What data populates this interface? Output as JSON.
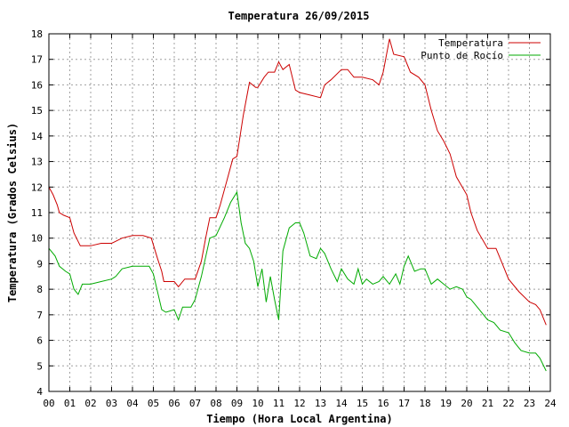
{
  "chart_data": {
    "type": "line",
    "title": "Temperatura 26/09/2015",
    "xlabel": "Tiempo (Hora Local Argentina)",
    "ylabel": "Temperatura (Grados Celsius)",
    "xlim": [
      0,
      24
    ],
    "ylim": [
      4,
      18
    ],
    "x_ticks": [
      "00",
      "01",
      "02",
      "03",
      "04",
      "05",
      "06",
      "07",
      "08",
      "09",
      "10",
      "11",
      "12",
      "13",
      "14",
      "15",
      "16",
      "17",
      "18",
      "19",
      "20",
      "21",
      "22",
      "23",
      "24"
    ],
    "y_ticks": [
      "4",
      "5",
      "6",
      "7",
      "8",
      "9",
      "10",
      "11",
      "12",
      "13",
      "14",
      "15",
      "16",
      "17",
      "18"
    ],
    "grid": true,
    "legend_position": "top-right",
    "series": [
      {
        "name": "Temperatura",
        "color": "#cc0000",
        "x": [
          0,
          0.2,
          0.4,
          0.5,
          0.7,
          1.0,
          1.2,
          1.5,
          2.0,
          2.5,
          3.0,
          3.5,
          4.0,
          4.5,
          4.9,
          5.2,
          5.4,
          5.5,
          6.0,
          6.2,
          6.5,
          7.0,
          7.3,
          7.5,
          7.7,
          8.0,
          8.2,
          8.5,
          8.8,
          9.0,
          9.3,
          9.6,
          9.9,
          10.0,
          10.3,
          10.5,
          10.8,
          11.0,
          11.2,
          11.5,
          11.8,
          12.0,
          12.5,
          13.0,
          13.2,
          13.5,
          14.0,
          14.3,
          14.6,
          15.0,
          15.5,
          15.8,
          16.0,
          16.3,
          16.5,
          17.0,
          17.3,
          17.7,
          18.0,
          18.3,
          18.6,
          18.9,
          19.2,
          19.5,
          20.0,
          20.2,
          20.5,
          21.0,
          21.4,
          21.7,
          22.0,
          22.5,
          23.0,
          23.3,
          23.5,
          23.8
        ],
        "values": [
          12.0,
          11.7,
          11.3,
          11.0,
          10.9,
          10.8,
          10.2,
          9.7,
          9.7,
          9.8,
          9.8,
          10.0,
          10.1,
          10.1,
          10.0,
          9.2,
          8.7,
          8.3,
          8.3,
          8.1,
          8.4,
          8.4,
          9.1,
          10.0,
          10.8,
          10.8,
          11.3,
          12.2,
          13.1,
          13.2,
          14.8,
          16.1,
          15.9,
          15.9,
          16.3,
          16.5,
          16.5,
          16.9,
          16.6,
          16.8,
          15.8,
          15.7,
          15.6,
          15.5,
          16.0,
          16.2,
          16.6,
          16.6,
          16.3,
          16.3,
          16.2,
          16.0,
          16.5,
          17.8,
          17.2,
          17.1,
          16.5,
          16.3,
          16.0,
          15.0,
          14.2,
          13.8,
          13.3,
          12.4,
          11.7,
          11.0,
          10.3,
          9.6,
          9.6,
          9.0,
          8.4,
          7.9,
          7.5,
          7.4,
          7.2,
          6.6
        ]
      },
      {
        "name": "Punto de Rocío",
        "color": "#00aa00",
        "x": [
          0,
          0.3,
          0.5,
          0.8,
          1.0,
          1.2,
          1.4,
          1.6,
          2.0,
          2.5,
          3.0,
          3.2,
          3.5,
          4.0,
          4.5,
          4.8,
          5.0,
          5.2,
          5.4,
          5.6,
          6.0,
          6.2,
          6.4,
          6.8,
          7.0,
          7.3,
          7.7,
          8.0,
          8.4,
          8.7,
          9.0,
          9.2,
          9.4,
          9.6,
          9.8,
          10.0,
          10.2,
          10.4,
          10.6,
          10.8,
          11.0,
          11.2,
          11.5,
          11.8,
          12.0,
          12.2,
          12.5,
          12.8,
          13.0,
          13.2,
          13.5,
          13.8,
          14.0,
          14.3,
          14.6,
          14.8,
          15.0,
          15.2,
          15.5,
          15.8,
          16.0,
          16.3,
          16.6,
          16.8,
          17.0,
          17.2,
          17.5,
          17.8,
          18.0,
          18.3,
          18.6,
          18.9,
          19.2,
          19.5,
          19.8,
          20.0,
          20.2,
          20.5,
          21.0,
          21.3,
          21.6,
          22.0,
          22.3,
          22.6,
          23.0,
          23.3,
          23.5,
          23.8
        ],
        "values": [
          9.6,
          9.3,
          8.9,
          8.7,
          8.6,
          8.0,
          7.8,
          8.2,
          8.2,
          8.3,
          8.4,
          8.5,
          8.8,
          8.9,
          8.9,
          8.9,
          8.6,
          7.9,
          7.2,
          7.1,
          7.2,
          6.8,
          7.3,
          7.3,
          7.6,
          8.5,
          10.0,
          10.1,
          10.8,
          11.4,
          11.8,
          10.6,
          9.8,
          9.6,
          9.1,
          8.1,
          8.8,
          7.5,
          8.5,
          7.6,
          6.8,
          9.5,
          10.4,
          10.6,
          10.6,
          10.2,
          9.3,
          9.2,
          9.6,
          9.4,
          8.8,
          8.3,
          8.8,
          8.4,
          8.2,
          8.8,
          8.2,
          8.4,
          8.2,
          8.3,
          8.5,
          8.2,
          8.6,
          8.2,
          8.9,
          9.3,
          8.7,
          8.8,
          8.8,
          8.2,
          8.4,
          8.2,
          8.0,
          8.1,
          8.0,
          7.7,
          7.6,
          7.3,
          6.8,
          6.7,
          6.4,
          6.3,
          5.9,
          5.6,
          5.5,
          5.5,
          5.3,
          4.8
        ]
      }
    ]
  }
}
